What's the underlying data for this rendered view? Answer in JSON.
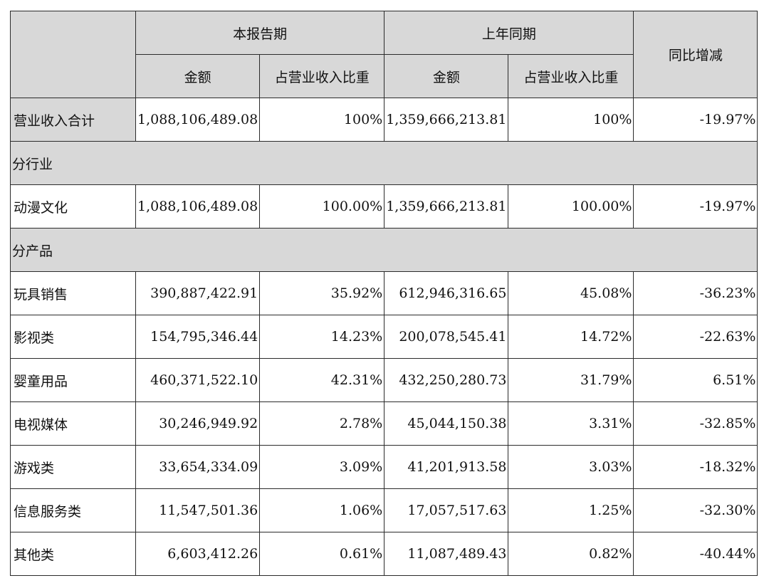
{
  "header": {
    "current_period": "本报告期",
    "prior_period": "上年同期",
    "yoy_change": "同比增减",
    "amount": "金额",
    "share_of_revenue": "占营业收入比重"
  },
  "total_row": {
    "label": "营业收入合计",
    "current_amount": "1,088,106,489.08",
    "current_share": "100%",
    "prior_amount": "1,359,666,213.81",
    "prior_share": "100%",
    "change": "-19.97%"
  },
  "sections": [
    {
      "title": "分行业",
      "rows": [
        {
          "label": "动漫文化",
          "current_amount": "1,088,106,489.08",
          "current_share": "100.00%",
          "prior_amount": "1,359,666,213.81",
          "prior_share": "100.00%",
          "change": "-19.97%"
        }
      ]
    },
    {
      "title": "分产品",
      "rows": [
        {
          "label": "玩具销售",
          "current_amount": "390,887,422.91",
          "current_share": "35.92%",
          "prior_amount": "612,946,316.65",
          "prior_share": "45.08%",
          "change": "-36.23%"
        },
        {
          "label": "影视类",
          "current_amount": "154,795,346.44",
          "current_share": "14.23%",
          "prior_amount": "200,078,545.41",
          "prior_share": "14.72%",
          "change": "-22.63%"
        },
        {
          "label": "婴童用品",
          "current_amount": "460,371,522.10",
          "current_share": "42.31%",
          "prior_amount": "432,250,280.73",
          "prior_share": "31.79%",
          "change": "6.51%"
        },
        {
          "label": "电视媒体",
          "current_amount": "30,246,949.92",
          "current_share": "2.78%",
          "prior_amount": "45,044,150.38",
          "prior_share": "3.31%",
          "change": "-32.85%"
        },
        {
          "label": "游戏类",
          "current_amount": "33,654,334.09",
          "current_share": "3.09%",
          "prior_amount": "41,201,913.58",
          "prior_share": "3.03%",
          "change": "-18.32%"
        },
        {
          "label": "信息服务类",
          "current_amount": "11,547,501.36",
          "current_share": "1.06%",
          "prior_amount": "17,057,517.63",
          "prior_share": "1.25%",
          "change": "-32.30%"
        },
        {
          "label": "其他类",
          "current_amount": "6,603,412.26",
          "current_share": "0.61%",
          "prior_amount": "11,087,489.43",
          "prior_share": "0.82%",
          "change": "-40.44%"
        }
      ]
    }
  ]
}
